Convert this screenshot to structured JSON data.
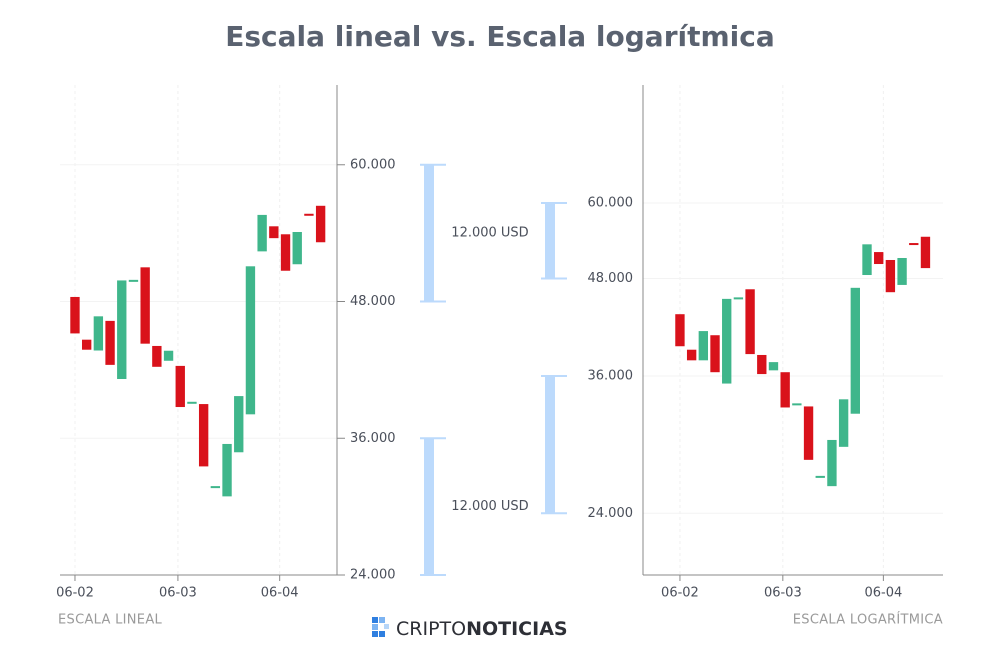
{
  "title": "Escala lineal vs. Escala logarítmica",
  "footer": {
    "left": "ESCALA LINEAL",
    "right": "ESCALA LOGARÍTMICA",
    "brand_light": "CRIPTO",
    "brand_bold": "NOTICIAS"
  },
  "chart_data": [
    {
      "type": "candlestick",
      "log_scale": false,
      "up_color": "#3fb68b",
      "down_color": "#d9121b",
      "grid": true,
      "x": [
        0,
        1,
        2,
        3,
        4,
        5,
        6,
        7,
        8,
        9,
        10,
        11,
        12,
        13,
        14,
        15,
        16,
        17,
        18,
        19,
        20,
        21
      ],
      "open": [
        48400,
        44650,
        43700,
        46300,
        41200,
        49800,
        51000,
        44100,
        42800,
        42350,
        39100,
        39000,
        31700,
        30900,
        34770,
        38100,
        52400,
        54600,
        53900,
        51270,
        55700,
        56400
      ],
      "close": [
        45200,
        43770,
        46700,
        42440,
        49850,
        49900,
        44300,
        42270,
        43680,
        38740,
        39200,
        33530,
        31800,
        35500,
        39700,
        51090,
        55600,
        53560,
        50700,
        54100,
        55600,
        53200
      ],
      "xlim": [
        -1.28,
        22.4
      ],
      "xticks": [
        {
          "value": 0,
          "label": "06-02"
        },
        {
          "value": 8.8,
          "label": "06-03"
        },
        {
          "value": 17.5,
          "label": "06-04"
        }
      ],
      "ylim": [
        24000,
        67000
      ],
      "yticks": [
        {
          "value": 24000,
          "label": "24.000"
        },
        {
          "value": 36000,
          "label": "36.000"
        },
        {
          "value": 48000,
          "label": "48.000"
        },
        {
          "value": 60000,
          "label": "60.000"
        }
      ],
      "ranges": [
        {
          "from": 48000,
          "to": 60000,
          "label": "12.000 USD"
        },
        {
          "from": 24000,
          "to": 36000,
          "label": "12.000 USD"
        }
      ]
    },
    {
      "type": "candlestick",
      "log_scale": true,
      "up_color": "#3fb68b",
      "down_color": "#d9121b",
      "grid": true,
      "x": [
        0,
        1,
        2,
        3,
        4,
        5,
        6,
        7,
        8,
        9,
        10,
        11,
        12,
        13,
        14,
        15,
        16,
        17,
        18,
        19,
        20,
        21
      ],
      "open": [
        43200,
        38900,
        37700,
        40600,
        35200,
        45300,
        46500,
        38300,
        36600,
        36400,
        33100,
        32900,
        26700,
        26000,
        29200,
        32200,
        48500,
        51900,
        50700,
        47100,
        53300,
        54300
      ],
      "close": [
        39300,
        37700,
        41100,
        36400,
        45200,
        45400,
        38400,
        36200,
        37500,
        32800,
        33200,
        28100,
        26800,
        29800,
        33600,
        46700,
        53100,
        50100,
        46100,
        51000,
        53200,
        49500
      ],
      "xlim": [
        -3.16,
        22.5
      ],
      "xticks": [
        {
          "value": 0,
          "label": "06-02"
        },
        {
          "value": 8.8,
          "label": "06-03"
        },
        {
          "value": 17.4,
          "label": "06-04"
        }
      ],
      "ylim": [
        20000,
        85000
      ],
      "yticks": [
        {
          "value": 24000,
          "label": "24.000"
        },
        {
          "value": 36000,
          "label": "36.000"
        },
        {
          "value": 48000,
          "label": "48.000"
        },
        {
          "value": 60000,
          "label": "60.000"
        }
      ],
      "ranges": [
        {
          "from": 48000,
          "to": 60000
        },
        {
          "from": 24000,
          "to": 36000
        }
      ]
    }
  ]
}
